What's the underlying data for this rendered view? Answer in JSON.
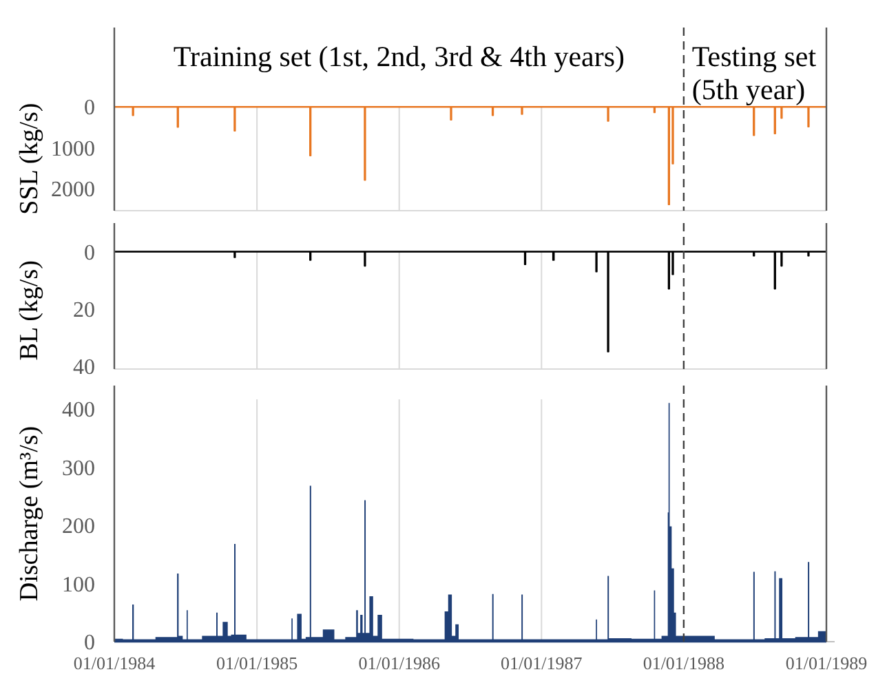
{
  "chart_data": [
    {
      "type": "area",
      "ylabel": "SSL (kg/s)",
      "annotations": [
        "Training set (1st, 2nd, 3rd & 4th years)",
        "Testing set (5th year)"
      ],
      "xlim": [
        "1984-01-01",
        "1989-01-01"
      ],
      "xticks": [
        {
          "value": "1984-01-01",
          "label": null
        },
        {
          "value": "1985-01-01",
          "label": null
        },
        {
          "value": "1986-01-01",
          "label": null
        },
        {
          "value": "1987-01-01",
          "label": null
        },
        {
          "value": "1988-01-01",
          "label": null
        },
        {
          "value": "1989-01-01",
          "label": null
        }
      ],
      "ylim": [
        2550,
        -1950
      ],
      "yticks": [
        0,
        1000,
        2000
      ],
      "grid": "x",
      "tick_labels": "y",
      "ref_lines": [
        {
          "axis": "x",
          "value": "1988-01-01",
          "line_style": "dashed",
          "color": "#404040"
        }
      ],
      "series": [
        {
          "color": "#e87722",
          "x": [
            "1984-01-01",
            "1984-02-15",
            "1984-02-18",
            "1984-02-21",
            "1984-06-09",
            "1984-06-12",
            "1984-06-15",
            "1984-11-02",
            "1984-11-05",
            "1984-11-08",
            "1985-05-15",
            "1985-05-18",
            "1985-05-21",
            "1985-10-02",
            "1985-10-05",
            "1985-10-08",
            "1986-05-11",
            "1986-05-14",
            "1986-05-17",
            "1986-08-26",
            "1986-08-29",
            "1986-09-01",
            "1986-11-09",
            "1986-11-12",
            "1986-11-15",
            "1987-06-18",
            "1987-06-21",
            "1987-06-24",
            "1987-10-15",
            "1987-10-18",
            "1987-10-21",
            "1987-11-21",
            "1987-11-24",
            "1987-11-27",
            "1987-12-01",
            "1987-12-04",
            "1987-12-07",
            "1988-06-26",
            "1988-06-29",
            "1988-07-02",
            "1988-08-19",
            "1988-08-22",
            "1988-08-25",
            "1988-09-05",
            "1988-09-08",
            "1988-09-11",
            "1988-11-13",
            "1988-11-16",
            "1988-11-19",
            "1988-12-31"
          ],
          "values": [
            0,
            0,
            210,
            0,
            0,
            500,
            0,
            0,
            590,
            0,
            0,
            1200,
            0,
            0,
            1800,
            0,
            0,
            320,
            0,
            0,
            210,
            0,
            0,
            180,
            0,
            0,
            350,
            0,
            0,
            140,
            0,
            0,
            2400,
            0,
            0,
            1400,
            0,
            0,
            700,
            0,
            0,
            660,
            0,
            0,
            280,
            0,
            0,
            490,
            0,
            0
          ]
        }
      ]
    },
    {
      "type": "area",
      "ylabel": "BL (kg/s)",
      "xlim": [
        "1984-01-01",
        "1989-01-01"
      ],
      "xticks": [
        {
          "value": "1984-01-01",
          "label": null
        },
        {
          "value": "1985-01-01",
          "label": null
        },
        {
          "value": "1986-01-01",
          "label": null
        },
        {
          "value": "1987-01-01",
          "label": null
        },
        {
          "value": "1988-01-01",
          "label": null
        },
        {
          "value": "1989-01-01",
          "label": null
        }
      ],
      "ylim": [
        41,
        -10
      ],
      "yticks": [
        0,
        20,
        40
      ],
      "grid": "x",
      "tick_labels": "y",
      "ref_lines": [
        {
          "axis": "x",
          "value": "1988-01-01",
          "line_style": "dashed",
          "color": "#404040"
        }
      ],
      "series": [
        {
          "color": "#000000",
          "x": [
            "1984-01-01",
            "1984-11-02",
            "1984-11-05",
            "1984-11-08",
            "1985-05-15",
            "1985-05-18",
            "1985-05-21",
            "1985-10-02",
            "1985-10-05",
            "1985-10-08",
            "1986-11-17",
            "1986-11-20",
            "1986-11-23",
            "1987-01-28",
            "1987-02-01",
            "1987-02-04",
            "1987-05-19",
            "1987-05-22",
            "1987-05-25",
            "1987-06-18",
            "1987-06-21",
            "1987-06-24",
            "1987-11-21",
            "1987-11-24",
            "1987-11-27",
            "1987-12-01",
            "1987-12-04",
            "1987-12-07",
            "1988-06-26",
            "1988-06-29",
            "1988-07-02",
            "1988-08-19",
            "1988-08-22",
            "1988-08-25",
            "1988-09-05",
            "1988-09-08",
            "1988-09-11",
            "1988-11-13",
            "1988-11-16",
            "1988-11-19",
            "1988-12-31"
          ],
          "values": [
            0,
            0,
            2,
            0,
            0,
            3,
            0,
            0,
            5,
            0,
            0,
            4.5,
            0,
            0,
            3,
            0,
            0,
            7,
            0,
            0,
            35,
            0,
            0,
            13,
            0,
            0,
            8,
            0,
            0,
            1.5,
            0,
            0,
            13,
            0,
            0,
            5,
            0,
            0,
            1.5,
            0,
            0
          ]
        }
      ]
    },
    {
      "type": "area",
      "ylabel": "Discharge (m³/s)",
      "xlim": [
        "1984-01-01",
        "1989-01-01"
      ],
      "xticks": [
        {
          "value": "1984-01-01",
          "label": "01/01/1984"
        },
        {
          "value": "1985-01-01",
          "label": "01/01/1985"
        },
        {
          "value": "1986-01-01",
          "label": "01/01/1986"
        },
        {
          "value": "1987-01-01",
          "label": "01/01/1987"
        },
        {
          "value": "1988-01-01",
          "label": "01/01/1988"
        },
        {
          "value": "1989-01-01",
          "label": "01/01/1989"
        }
      ],
      "ylim": [
        0,
        440
      ],
      "yticks": [
        0,
        100,
        200,
        300,
        400
      ],
      "grid": "x",
      "ref_lines": [
        {
          "axis": "x",
          "value": "1988-01-01",
          "line_style": "dashed",
          "color": "#404040"
        }
      ],
      "series": [
        {
          "color": "#1f3f77",
          "x": [
            "1984-01-01",
            "1984-02-14",
            "1984-02-18",
            "1984-02-22",
            "1984-06-08",
            "1984-06-12",
            "1984-06-16",
            "1984-07-03",
            "1984-07-06",
            "1984-07-09",
            "1984-09-17",
            "1984-09-20",
            "1984-09-24",
            "1984-10-16",
            "1984-10-20",
            "1984-11-02",
            "1984-11-05",
            "1984-11-09",
            "1984-12-31",
            "1985-03-29",
            "1985-04-01",
            "1985-04-04",
            "1985-04-24",
            "1985-04-27",
            "1985-05-15",
            "1985-05-18",
            "1985-05-22",
            "1985-07-17",
            "1985-07-20",
            "1985-09-11",
            "1985-09-14",
            "1985-09-20",
            "1985-09-26",
            "1985-10-02",
            "1985-10-05",
            "1985-10-09",
            "1985-10-24",
            "1985-10-28",
            "1985-11-16",
            "1985-11-20",
            "1986-04-26",
            "1986-04-29",
            "1986-05-14",
            "1986-05-18",
            "1986-06-01",
            "1986-06-04",
            "1986-08-26",
            "1986-08-29",
            "1986-09-02",
            "1986-11-09",
            "1986-11-12",
            "1986-11-16",
            "1987-05-19",
            "1987-05-22",
            "1987-05-25",
            "1987-06-18",
            "1987-06-21",
            "1987-06-25",
            "1987-10-15",
            "1987-10-18",
            "1987-10-21",
            "1987-11-20",
            "1987-11-22",
            "1987-11-24",
            "1987-11-28",
            "1987-12-04",
            "1987-12-10",
            "1987-12-14",
            "1988-06-26",
            "1988-06-29",
            "1988-07-03",
            "1988-08-19",
            "1988-08-22",
            "1988-08-26",
            "1988-09-08",
            "1988-09-12",
            "1988-11-13",
            "1988-11-16",
            "1988-11-20",
            "1988-12-31"
          ],
          "values": [
            5,
            4,
            64,
            4,
            8,
            117,
            10,
            4,
            54,
            4,
            10,
            50,
            10,
            34,
            10,
            12,
            168,
            12,
            4,
            4,
            40,
            4,
            48,
            5,
            8,
            268,
            8,
            21,
            4,
            8,
            54,
            15,
            46,
            15,
            243,
            15,
            78,
            10,
            46,
            5,
            4,
            52,
            81,
            10,
            30,
            4,
            4,
            82,
            4,
            4,
            81,
            4,
            4,
            38,
            4,
            4,
            113,
            6,
            5,
            88,
            5,
            10,
            222,
            410,
            198,
            126,
            50,
            10,
            4,
            120,
            4,
            6,
            121,
            6,
            109,
            6,
            8,
            137,
            8,
            18
          ]
        }
      ]
    }
  ]
}
